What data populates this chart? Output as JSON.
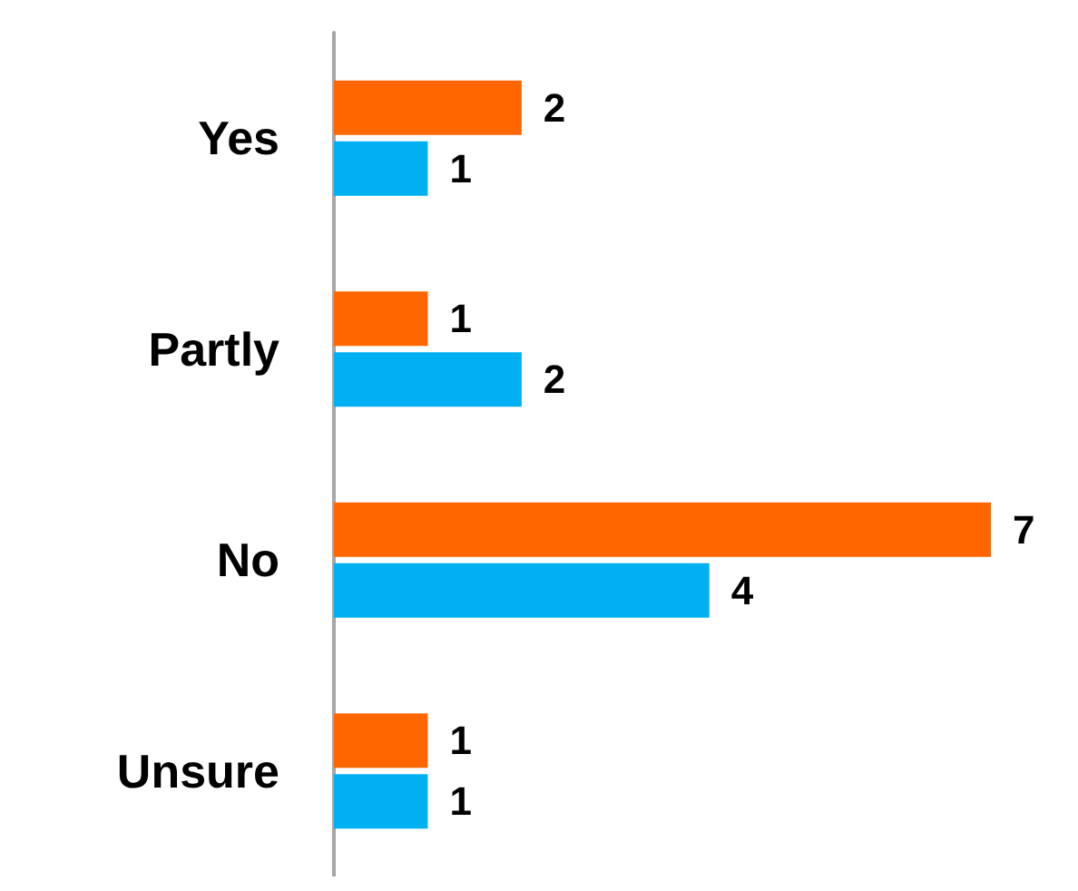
{
  "chart_data": {
    "type": "bar",
    "orientation": "horizontal",
    "categories": [
      "Yes",
      "Partly",
      "No",
      "Unsure"
    ],
    "series": [
      {
        "color": "#ff6600",
        "values": [
          2,
          1,
          7,
          1
        ]
      },
      {
        "color": "#00b0f0",
        "values": [
          1,
          2,
          4,
          1
        ]
      }
    ],
    "data_labels": true
  }
}
